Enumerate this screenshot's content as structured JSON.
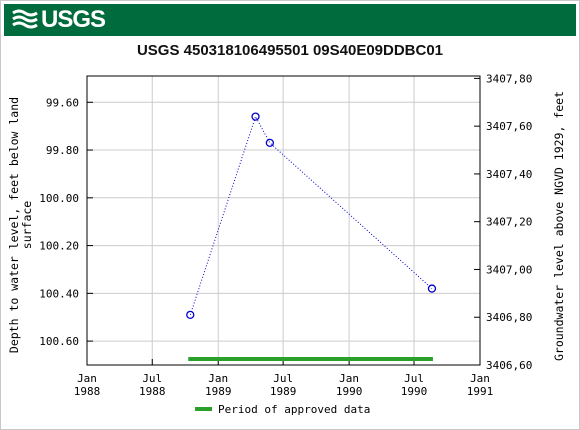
{
  "header": {
    "logo_text": "USGS",
    "logo_icon": "usgs-wave-icon",
    "bar_color": "#006b3c"
  },
  "chart_data": {
    "type": "scatter",
    "title": "USGS 450318106495501 09S40E09DDBC01",
    "ylabel_left": [
      "Depth to water level, feet below land",
      "surface"
    ],
    "ylabel_right": "Groundwater level above NGVD 1929, feet",
    "x_range": [
      "1988-01-01",
      "1991-01-01"
    ],
    "x_ticks": [
      {
        "date": "1988-01-01",
        "label": [
          "Jan",
          "1988"
        ]
      },
      {
        "date": "1988-07-01",
        "label": [
          "Jul",
          "1988"
        ]
      },
      {
        "date": "1989-01-01",
        "label": [
          "Jan",
          "1989"
        ]
      },
      {
        "date": "1989-07-01",
        "label": [
          "Jul",
          "1989"
        ]
      },
      {
        "date": "1990-01-01",
        "label": [
          "Jan",
          "1990"
        ]
      },
      {
        "date": "1990-07-01",
        "label": [
          "Jul",
          "1990"
        ]
      },
      {
        "date": "1991-01-01",
        "label": [
          "Jan",
          "1991"
        ]
      }
    ],
    "y_left_range": [
      100.7,
      99.49
    ],
    "y_left_ticks": [
      99.6,
      99.8,
      100.0,
      100.2,
      100.4,
      100.6
    ],
    "y_left_tick_labels": [
      "99.60",
      "99.80",
      "100.00",
      "100.20",
      "100.40",
      "100.60"
    ],
    "y_right_ticks": [
      3406.6,
      3406.8,
      3407.0,
      3407.2,
      3407.4,
      3407.6,
      3407.8
    ],
    "y_right_tick_labels": [
      "3406,60",
      "3406,80",
      "3407,00",
      "3407,20",
      "3407,40",
      "3407,60",
      "3407,80"
    ],
    "y_right_range": [
      3406.6,
      3407.81
    ],
    "grid": true,
    "series": [
      {
        "points": [
          {
            "x": "1988-10-15",
            "y": 100.49
          },
          {
            "x": "1989-04-15",
            "y": 99.66
          },
          {
            "x": "1989-05-25",
            "y": 99.77
          },
          {
            "x": "1990-08-20",
            "y": 100.38
          }
        ],
        "color": "#0000cc",
        "line_style": "dotted",
        "marker": "open-circle"
      }
    ],
    "approved_period": {
      "start": "1988-10-15",
      "end": "1990-08-20",
      "color": "#2aa02a"
    },
    "legend": {
      "label": "Period of approved data",
      "placement": "bottom-center"
    }
  }
}
